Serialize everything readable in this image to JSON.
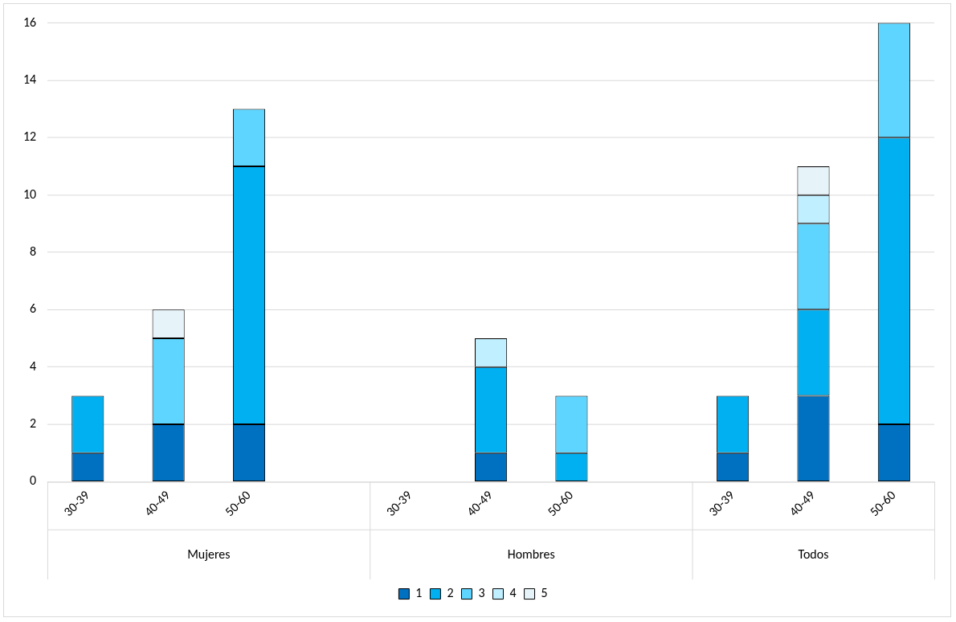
{
  "chart_data": {
    "type": "bar",
    "stacked": true,
    "categories": [
      "30-39",
      "40-49",
      "50-60",
      null,
      "30-39",
      "40-49",
      "50-60",
      null,
      "30-39",
      "40-49",
      "50-60"
    ],
    "series": [
      {
        "name": "1",
        "color": "#0070c0",
        "values": [
          1,
          2,
          2,
          null,
          0,
          1,
          0,
          null,
          1,
          3,
          2
        ]
      },
      {
        "name": "2",
        "color": "#00b0f0",
        "values": [
          2,
          0,
          9,
          null,
          0,
          3,
          1,
          null,
          2,
          3,
          10
        ]
      },
      {
        "name": "3",
        "color": "#5dd5ff",
        "values": [
          0,
          3,
          2,
          null,
          0,
          0,
          2,
          null,
          0,
          3,
          4
        ]
      },
      {
        "name": "4",
        "color": "#c0efff",
        "values": [
          0,
          0,
          0,
          null,
          0,
          1,
          0,
          null,
          0,
          1,
          0
        ]
      },
      {
        "name": "5",
        "color": "#e6f3f8",
        "values": [
          0,
          1,
          0,
          null,
          0,
          0,
          0,
          null,
          0,
          1,
          0
        ]
      }
    ],
    "annotations": [
      "Mujeres",
      "Hombres",
      "Todos"
    ],
    "ylim": [
      0,
      16
    ],
    "yticks": [
      0,
      2,
      4,
      6,
      8,
      10,
      12,
      14,
      16
    ],
    "grid": "y",
    "legend": "bottom"
  }
}
